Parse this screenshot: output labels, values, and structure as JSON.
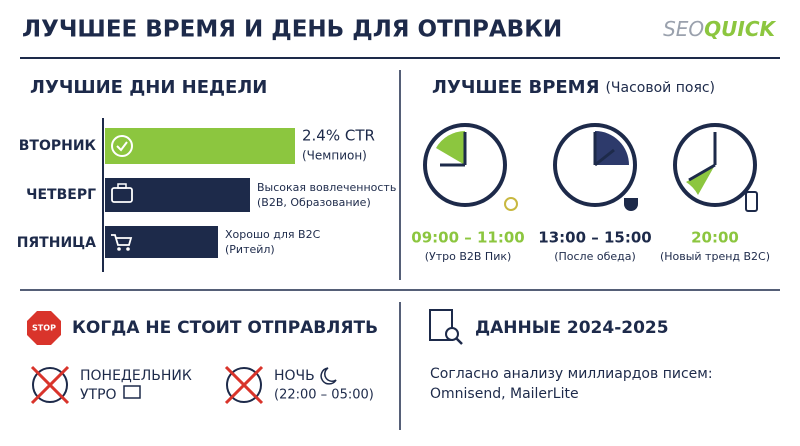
{
  "header": {
    "title": "ЛУЧШЕЕ ВРЕМЯ И ДЕНЬ ДЛЯ ОТПРАВКИ",
    "brand": [
      "SEO",
      "QUICK"
    ]
  },
  "days": {
    "title": "ЛУЧШИЕ ДНИ НЕДЕЛИ",
    "items": [
      {
        "label": "ВТОРНИК",
        "value": "2.4% CTR",
        "note": "(Чемпион)"
      },
      {
        "label": "ЧЕТВЕРГ",
        "value": "Высокая вовлеченность",
        "note": "(B2B, Образование)"
      },
      {
        "label": "ПЯТНИЦА",
        "value": "Хорошо для B2C",
        "note": "(Ритейл)"
      }
    ]
  },
  "times": {
    "title": "ЛУЧШЕЕ ВРЕМЯ",
    "subtitle": "(Часовой пояс)",
    "items": [
      {
        "time": "09:00 – 11:00",
        "note": "(Утро B2B Пик)"
      },
      {
        "time": "13:00 – 15:00",
        "note": "(После обеда)"
      },
      {
        "time": "20:00",
        "note": "(Новый тренд B2C)"
      }
    ]
  },
  "avoid": {
    "icon": "STOP",
    "title": "КОГДА НЕ СТОИТ ОТПРАВЛЯТЬ",
    "items": [
      {
        "label": "ПОНЕДЕЛЬНИК",
        "sub": "УТРО"
      },
      {
        "label": "НОЧЬ",
        "sub": "(22:00 – 05:00)"
      }
    ]
  },
  "source": {
    "title": "ДАННЫЕ 2024-2025",
    "lines": [
      "Согласно анализу миллиардов писем:",
      "Omnisend, MailerLite"
    ]
  }
}
